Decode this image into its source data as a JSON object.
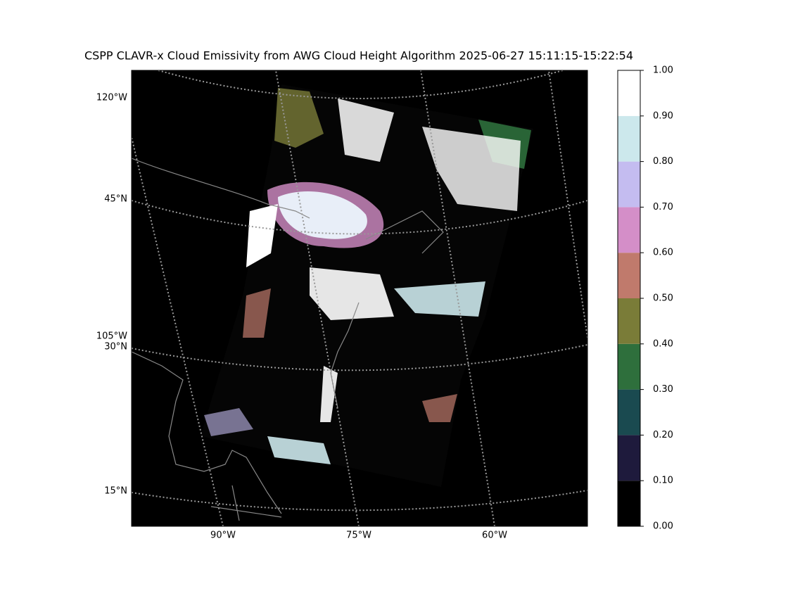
{
  "title": "CSPP CLAVR-x Cloud Emissivity from AWG Cloud Height Algorithm 2025-06-27 15:11:15-15:22:54",
  "map": {
    "left_labels": [
      "120°W",
      "45°N",
      "105°W",
      "30°N",
      "15°N"
    ],
    "bottom_labels": [
      "90°W",
      "75°W",
      "60°W"
    ]
  },
  "colorbar": {
    "colors": [
      "#000000",
      "#1e1a3c",
      "#1a4a50",
      "#2e6f3c",
      "#7a7c38",
      "#c07a6c",
      "#d48ec8",
      "#c4bcf0",
      "#cce8ec",
      "#ffffff"
    ],
    "ticks": [
      {
        "value": 0,
        "label": "0.00"
      },
      {
        "value": 0.1,
        "label": "0.10"
      },
      {
        "value": 0.2,
        "label": "0.20"
      },
      {
        "value": 0.3,
        "label": "0.30"
      },
      {
        "value": 0.4,
        "label": "0.40"
      },
      {
        "value": 0.5,
        "label": "0.50"
      },
      {
        "value": 0.6,
        "label": "0.60"
      },
      {
        "value": 0.7,
        "label": "0.70"
      },
      {
        "value": 0.8,
        "label": "0.80"
      },
      {
        "value": 0.9,
        "label": "0.90"
      },
      {
        "value": 1,
        "label": "1.00"
      }
    ],
    "lim": [
      0,
      1
    ]
  }
}
